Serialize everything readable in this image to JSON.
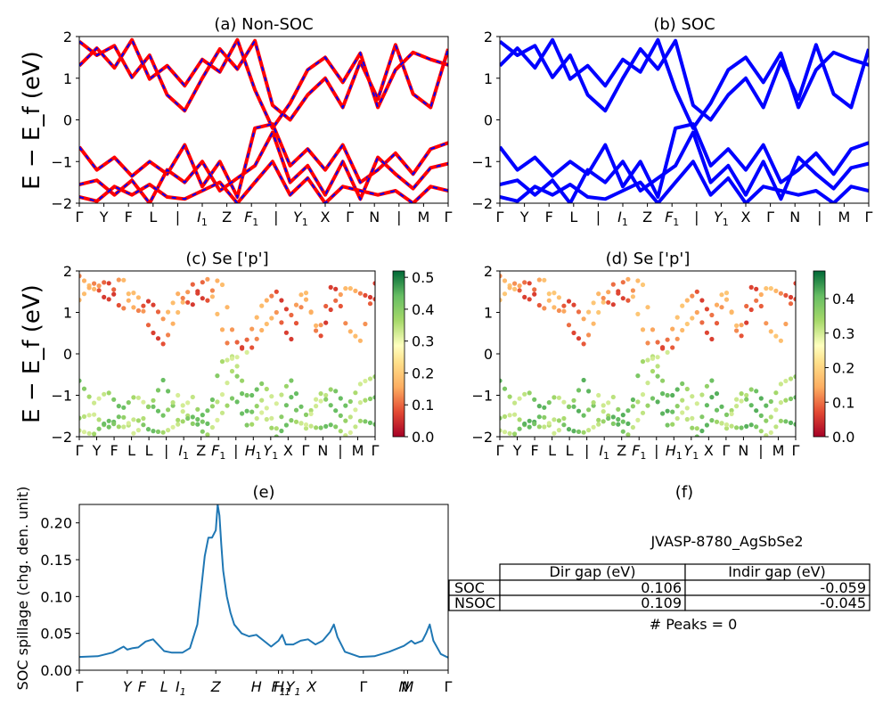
{
  "chart_data": [
    {
      "type": "line",
      "title": "(a) Non-SOC",
      "ylabel": "E − E_f (eV)",
      "ylim": [
        -2,
        2
      ],
      "yticks": [
        "−2",
        "−1",
        "0",
        "1",
        "2"
      ],
      "kpath_labels": [
        "Γ",
        "Y",
        "F",
        "L",
        "|",
        "I1",
        "Z",
        "F1",
        "|",
        "Y1",
        "X",
        "Γ",
        "N",
        "|",
        "M",
        "Γ"
      ],
      "series": [
        {
          "style": "red solid with blue dashes",
          "band": [
            1.88,
            1.55,
            1.78,
            1.02,
            1.55,
            0.6,
            0.22,
            1.0,
            1.7,
            1.22,
            1.9,
            0.35,
            0.0,
            0.6,
            1.0,
            0.3,
            1.4,
            0.5,
            1.8,
            0.62,
            0.3,
            1.7
          ]
        },
        {
          "style": "red solid with blue dashes",
          "band": [
            1.3,
            1.72,
            1.25,
            1.92,
            0.98,
            1.3,
            0.82,
            1.45,
            1.15,
            1.92,
            0.72,
            -0.2,
            0.4,
            1.2,
            1.5,
            0.9,
            1.6,
            0.3,
            1.2,
            1.62,
            1.45,
            1.32
          ]
        },
        {
          "style": "red solid with blue dashes",
          "band": [
            -0.65,
            -1.2,
            -0.9,
            -1.35,
            -1.0,
            -1.3,
            -0.6,
            -1.6,
            -1.0,
            -1.85,
            -0.2,
            -0.1,
            -1.1,
            -0.7,
            -1.2,
            -0.6,
            -1.5,
            -1.2,
            -0.8,
            -1.3,
            -0.7,
            -0.55
          ]
        },
        {
          "style": "red solid with blue dashes",
          "band": [
            -1.55,
            -1.45,
            -1.8,
            -1.45,
            -2.0,
            -1.2,
            -1.5,
            -1.0,
            -1.7,
            -1.4,
            -1.1,
            -0.3,
            -1.5,
            -1.1,
            -1.8,
            -1.0,
            -1.9,
            -0.9,
            -1.3,
            -1.65,
            -1.15,
            -1.05
          ]
        },
        {
          "style": "red solid with blue dashes",
          "band": [
            -1.85,
            -1.95,
            -1.6,
            -1.8,
            -1.55,
            -1.85,
            -1.9,
            -1.7,
            -1.5,
            -2.0,
            -1.5,
            -1.0,
            -1.8,
            -1.4,
            -2.0,
            -1.6,
            -1.7,
            -1.8,
            -1.7,
            -2.0,
            -1.6,
            -1.7
          ]
        }
      ]
    },
    {
      "type": "line",
      "title": "(b) SOC",
      "ylim": [
        -2,
        2
      ],
      "yticks": [
        "−2",
        "−1",
        "0",
        "1",
        "2"
      ],
      "kpath_labels": [
        "Γ",
        "Y",
        "F",
        "L",
        "|",
        "I1",
        "Z",
        "F1",
        "|",
        "Y1",
        "X",
        "Γ",
        "N",
        "|",
        "M",
        "Γ"
      ],
      "series": [
        {
          "style": "blue solid",
          "band": [
            1.88,
            1.55,
            1.78,
            1.02,
            1.55,
            0.6,
            0.22,
            1.0,
            1.7,
            1.22,
            1.9,
            0.35,
            0.0,
            0.6,
            1.0,
            0.3,
            1.4,
            0.5,
            1.8,
            0.62,
            0.3,
            1.7
          ]
        },
        {
          "style": "blue solid",
          "band": [
            1.3,
            1.72,
            1.25,
            1.92,
            0.98,
            1.3,
            0.82,
            1.45,
            1.15,
            1.92,
            0.72,
            -0.2,
            0.4,
            1.2,
            1.5,
            0.9,
            1.6,
            0.3,
            1.2,
            1.62,
            1.45,
            1.32
          ]
        },
        {
          "style": "blue solid",
          "band": [
            -0.65,
            -1.2,
            -0.9,
            -1.35,
            -1.0,
            -1.3,
            -0.6,
            -1.6,
            -1.0,
            -1.85,
            -0.2,
            -0.1,
            -1.1,
            -0.7,
            -1.2,
            -0.6,
            -1.5,
            -1.2,
            -0.8,
            -1.3,
            -0.7,
            -0.55
          ]
        },
        {
          "style": "blue solid",
          "band": [
            -1.55,
            -1.45,
            -1.8,
            -1.45,
            -2.0,
            -1.2,
            -1.5,
            -1.0,
            -1.7,
            -1.4,
            -1.1,
            -0.3,
            -1.5,
            -1.1,
            -1.8,
            -1.0,
            -1.9,
            -0.9,
            -1.3,
            -1.65,
            -1.15,
            -1.05
          ]
        },
        {
          "style": "blue solid",
          "band": [
            -1.85,
            -1.95,
            -1.6,
            -1.8,
            -1.55,
            -1.85,
            -1.9,
            -1.7,
            -1.5,
            -2.0,
            -1.5,
            -1.0,
            -1.8,
            -1.4,
            -2.0,
            -1.6,
            -1.7,
            -1.8,
            -1.7,
            -2.0,
            -1.6,
            -1.7
          ]
        }
      ]
    },
    {
      "type": "scatter",
      "title": "(c)  Se ['p']",
      "ylabel": "E − E_f (eV)",
      "ylim": [
        -2,
        2
      ],
      "yticks": [
        "−2",
        "−1",
        "0",
        "1",
        "2"
      ],
      "kpath_labels": [
        "Γ",
        "Y",
        "F",
        "L",
        "L",
        "|",
        "I1",
        "Z",
        "F1",
        "|",
        "H1",
        "Y1",
        "X",
        "Γ",
        "N",
        "|",
        "M",
        "Γ"
      ],
      "colorbar": {
        "range": [
          0.0,
          0.52
        ],
        "ticks": [
          "0.0",
          "0.1",
          "0.2",
          "0.3",
          "0.4",
          "0.5"
        ],
        "colormap": "RdYlGn"
      },
      "bands_weight": {
        "conduction": 0.12,
        "valence": 0.38
      }
    },
    {
      "type": "scatter",
      "title": "(d) Se ['p']",
      "ylim": [
        -2,
        2
      ],
      "yticks": [
        "−2",
        "−1",
        "0",
        "1",
        "2"
      ],
      "kpath_labels": [
        "Γ",
        "Y",
        "F",
        "L",
        "L",
        "|",
        "I1",
        "Z",
        "F1",
        "|",
        "H1",
        "Y1",
        "X",
        "Γ",
        "N",
        "|",
        "M",
        "Γ"
      ],
      "colorbar": {
        "range": [
          0.0,
          0.48
        ],
        "ticks": [
          "0.0",
          "0.1",
          "0.2",
          "0.3",
          "0.4"
        ],
        "colormap": "RdYlGn"
      },
      "bands_weight": {
        "conduction": 0.12,
        "valence": 0.36
      }
    },
    {
      "type": "line",
      "title": "(e)",
      "ylabel": "SOC spillage (chg. den. unit)",
      "ylim": [
        0.0,
        0.225
      ],
      "yticks": [
        "0.00",
        "0.05",
        "0.10",
        "0.15",
        "0.20"
      ],
      "xticks": [
        "Γ",
        "Y",
        "F",
        "L",
        "I1",
        "Z",
        "H",
        "F1",
        "H1",
        "Y1",
        "X",
        "Γ",
        "N",
        "M",
        "Γ"
      ],
      "x": [
        0.0,
        0.05,
        0.09,
        0.12,
        0.13,
        0.145,
        0.16,
        0.18,
        0.2,
        0.23,
        0.25,
        0.26,
        0.28,
        0.3,
        0.32,
        0.34,
        0.35,
        0.36,
        0.37,
        0.375,
        0.38,
        0.385,
        0.39,
        0.4,
        0.41,
        0.42,
        0.44,
        0.46,
        0.48,
        0.5,
        0.52,
        0.54,
        0.55,
        0.56,
        0.58,
        0.6,
        0.62,
        0.64,
        0.66,
        0.68,
        0.69,
        0.7,
        0.72,
        0.76,
        0.8,
        0.84,
        0.88,
        0.9,
        0.91,
        0.93,
        0.94,
        0.95,
        0.96,
        0.98,
        1.0
      ],
      "y": [
        0.018,
        0.019,
        0.024,
        0.032,
        0.028,
        0.03,
        0.031,
        0.039,
        0.042,
        0.026,
        0.024,
        0.024,
        0.024,
        0.03,
        0.062,
        0.155,
        0.18,
        0.18,
        0.19,
        0.225,
        0.21,
        0.17,
        0.135,
        0.1,
        0.078,
        0.062,
        0.05,
        0.046,
        0.048,
        0.04,
        0.032,
        0.04,
        0.048,
        0.035,
        0.035,
        0.04,
        0.042,
        0.035,
        0.04,
        0.052,
        0.062,
        0.045,
        0.025,
        0.018,
        0.019,
        0.025,
        0.033,
        0.04,
        0.036,
        0.04,
        0.05,
        0.062,
        0.04,
        0.022,
        0.017
      ]
    }
  ],
  "panel_f": {
    "title": "(f)",
    "header": "JVASP-8780_AgSbSe2",
    "columns": [
      "Dir gap (eV)",
      "Indir gap (eV)"
    ],
    "rows": [
      {
        "label": "SOC",
        "dir_gap": "0.106",
        "indir_gap": "-0.059"
      },
      {
        "label": "NSOC",
        "dir_gap": "0.109",
        "indir_gap": "-0.045"
      }
    ],
    "footer": "# Peaks = 0"
  },
  "colors": {
    "nonsoc_line": "#ff0000",
    "nonsoc_dash": "#0000ff",
    "soc_line": "#0000ff",
    "spillage_line": "#1f77b4"
  }
}
